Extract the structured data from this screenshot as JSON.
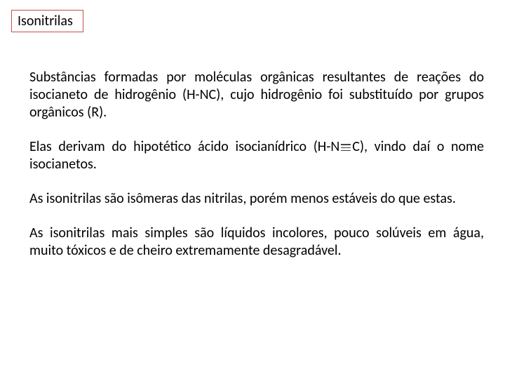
{
  "title": {
    "label": "Isonitrilas",
    "border_color": "#c0504d",
    "text_color": "#000000",
    "fontsize": 20
  },
  "body": {
    "text_color": "#000000",
    "fontsize": 20,
    "paragraphs": {
      "p1": "Substâncias formadas por moléculas orgânicas resultantes de reações do isocianeto de hidrogênio (H-NC), cujo hidrogênio foi substituído por grupos orgânicos (R).",
      "p2_pre": "Elas derivam do hipotético ácido isocianídrico (H-N",
      "p2_post": "C), vindo daí o nome isocianetos.",
      "p3": "As isonitrilas são isômeras das nitrilas, porém menos estáveis do que estas.",
      "p4": "As isonitrilas mais simples são líquidos incolores, pouco solúveis em água, muito tóxicos e de cheiro extremamente desagradável."
    }
  },
  "background_color": "#ffffff"
}
